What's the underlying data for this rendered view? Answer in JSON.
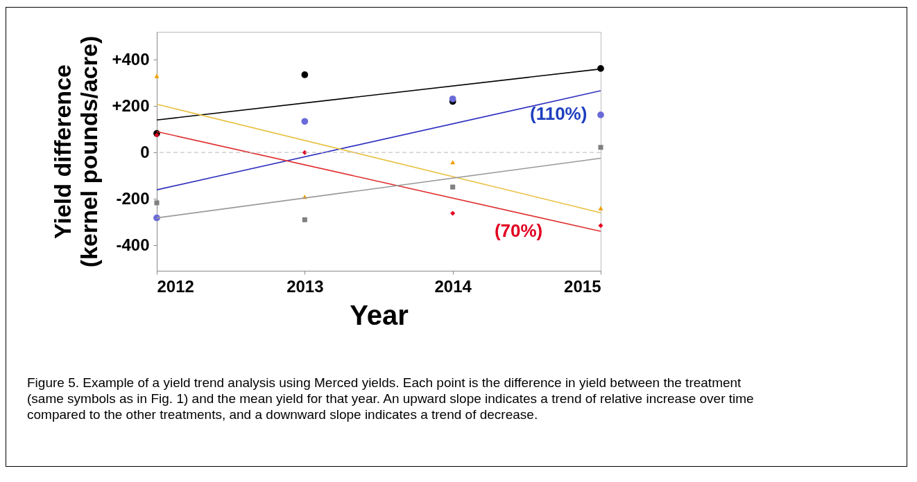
{
  "chart_data": {
    "type": "scatter",
    "xlabel": "Year",
    "ylabel": "Yield difference\n(kernel pounds/acre)",
    "xlim": [
      2012,
      2015
    ],
    "xticks": [
      2012,
      2013,
      2014,
      2015
    ],
    "ylim": [
      -510,
      520
    ],
    "yticks": [
      {
        "value": 400,
        "label": "+400"
      },
      {
        "value": 200,
        "label": "+200"
      },
      0,
      -200,
      -400
    ],
    "grid": false,
    "ref_lines": [
      {
        "axis": "y",
        "value": 0,
        "color": "#c8c8c8",
        "line_style": "dashed"
      }
    ],
    "series": [
      {
        "type": "scatter",
        "marker": "circle",
        "color": "#000000",
        "x": [
          2012,
          2013,
          2014,
          2015
        ],
        "values": [
          82,
          335,
          220,
          362
        ]
      },
      {
        "type": "scatter",
        "marker": "circle",
        "color": "#6a6ad8",
        "x": [
          2012,
          2013,
          2014,
          2015
        ],
        "values": [
          -282,
          134,
          231,
          162
        ]
      },
      {
        "type": "scatter",
        "marker": "triangle",
        "color": "#f0a000",
        "x": [
          2012,
          2013,
          2014,
          2015
        ],
        "values": [
          330,
          -191,
          -42,
          -240
        ]
      },
      {
        "type": "scatter",
        "marker": "diamond",
        "color": "#e00020",
        "x": [
          2012,
          2013,
          2014,
          2015
        ],
        "values": [
          75,
          0,
          -262,
          -315
        ]
      },
      {
        "type": "scatter",
        "marker": "square",
        "color": "#808080",
        "x": [
          2012,
          2013,
          2014,
          2015
        ],
        "values": [
          -217,
          -290,
          -149,
          22
        ]
      },
      {
        "type": "line",
        "marker": "none",
        "color": "#000000",
        "x": [
          2012,
          2015
        ],
        "values": [
          140,
          360
        ]
      },
      {
        "type": "line",
        "marker": "none",
        "color": "#3030c0",
        "x": [
          2012,
          2015
        ],
        "values": [
          -161,
          266
        ]
      },
      {
        "type": "line",
        "marker": "none",
        "color": "#e8c040",
        "x": [
          2012,
          2015
        ],
        "values": [
          208,
          -260
        ]
      },
      {
        "type": "line",
        "marker": "none",
        "color": "#e03030",
        "x": [
          2012,
          2015
        ],
        "values": [
          90,
          -340
        ]
      },
      {
        "type": "line",
        "marker": "none",
        "color": "#999999",
        "x": [
          2012,
          2015
        ],
        "values": [
          -282,
          -25
        ]
      }
    ],
    "annotations": [
      "(110%)",
      "(70%)",
      "Figure 5. Example of a yield trend analysis using Merced yields.  Each point is the difference in yield between the treatment (same symbols as in Fig. 1) and the mean yield for that year.  An upward slope indicates a trend of relative increase over time compared to the other treatments, and a downward slope indicates a trend of decrease."
    ]
  }
}
